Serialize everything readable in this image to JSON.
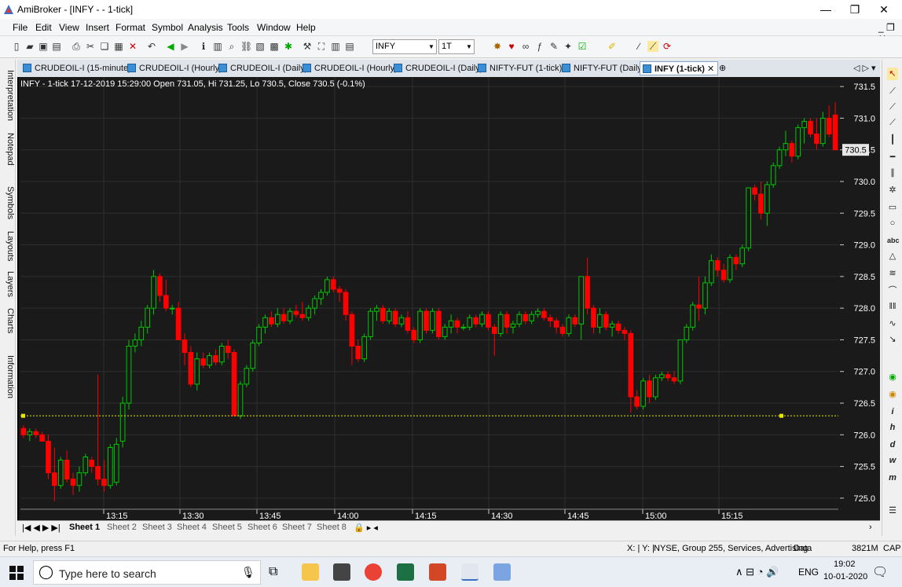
{
  "window": {
    "title": "AmiBroker - [INFY -  - 1-tick]",
    "minimize": "—",
    "maximize": "❐",
    "close": "✕"
  },
  "menu": [
    "File",
    "Edit",
    "View",
    "Insert",
    "Format",
    "Symbol",
    "Analysis",
    "Tools",
    "Window",
    "Help"
  ],
  "toolbar": {
    "symbol_value": "INFY",
    "interval_value": "1T"
  },
  "sidebar_tabs": [
    "Interpretation",
    "Notepad",
    "Symbols",
    "Layouts",
    "Layers",
    "Charts",
    "Information"
  ],
  "tabs": [
    {
      "label": "CRUDEOIL-I (15-minute)"
    },
    {
      "label": "CRUDEOIL-I (Hourly)"
    },
    {
      "label": "CRUDEOIL-I (Daily)"
    },
    {
      "label": "CRUDEOIL-I (Hourly)"
    },
    {
      "label": "CRUDEOIL-I (Daily)"
    },
    {
      "label": "NIFTY-FUT (1-tick)"
    },
    {
      "label": "NIFTY-FUT (Daily)"
    },
    {
      "label": "INFY (1-tick)",
      "active": true
    }
  ],
  "chart_header": "INFY - 1-tick 17-12-2019 15:29:00 Open 731.05, Hi 731.25, Lo 730.5, Close 730.5 (-0.1%)",
  "chart_data": {
    "type": "candlestick",
    "title": "INFY - 1-tick 17-12-2019 15:29:00 Open 731.05, Hi 731.25, Lo 730.5, Close 730.5 (-0.1%)",
    "xlabel": "",
    "ylabel": "",
    "y_ticks": [
      725.0,
      725.5,
      726.0,
      726.5,
      727.0,
      727.5,
      728.0,
      728.5,
      729.0,
      729.5,
      730.0,
      730.5,
      731.0,
      731.5
    ],
    "ylim": [
      724.85,
      731.65
    ],
    "x_ticks": [
      "13:15",
      "13:30",
      "13:45",
      "14:00",
      "14:15",
      "14:30",
      "14:45",
      "15:00",
      "15:15"
    ],
    "last_price": "730.5",
    "reference_line": 726.3,
    "up_color": "#00c800",
    "down_color": "#ff0000",
    "grid": true,
    "candles": [
      [
        726.1,
        726.15,
        725.95,
        726.0
      ],
      [
        726.0,
        726.1,
        725.9,
        726.05
      ],
      [
        726.05,
        726.1,
        725.95,
        726.0
      ],
      [
        726.0,
        726.05,
        725.9,
        725.9
      ],
      [
        725.9,
        726.0,
        725.3,
        725.4
      ],
      [
        725.4,
        725.8,
        724.95,
        725.2
      ],
      [
        725.2,
        725.65,
        725.15,
        725.6
      ],
      [
        725.6,
        725.75,
        725.25,
        725.3
      ],
      [
        725.3,
        725.4,
        725.05,
        725.2
      ],
      [
        725.2,
        725.5,
        725.1,
        725.4
      ],
      [
        725.4,
        725.7,
        725.35,
        725.65
      ],
      [
        725.6,
        725.65,
        725.4,
        725.5
      ],
      [
        725.5,
        726.95,
        725.2,
        725.3
      ],
      [
        725.3,
        725.6,
        725.1,
        725.2
      ],
      [
        725.2,
        725.85,
        725.15,
        725.8
      ],
      [
        725.25,
        725.95,
        725.2,
        725.85
      ],
      [
        725.9,
        726.6,
        725.8,
        726.5
      ],
      [
        726.5,
        727.5,
        726.4,
        727.4
      ],
      [
        727.4,
        727.6,
        727.3,
        727.5
      ],
      [
        727.5,
        727.8,
        727.4,
        727.7
      ],
      [
        727.7,
        728.05,
        727.6,
        728.0
      ],
      [
        728.0,
        728.6,
        727.9,
        728.5
      ],
      [
        728.5,
        728.55,
        728.1,
        728.2
      ],
      [
        728.2,
        728.45,
        727.95,
        728.0
      ],
      [
        728.0,
        728.05,
        727.9,
        728.0
      ],
      [
        728.0,
        728.1,
        727.5,
        727.5
      ],
      [
        727.5,
        727.6,
        727.1,
        727.3
      ],
      [
        727.3,
        727.4,
        726.75,
        726.8
      ],
      [
        726.8,
        727.3,
        726.7,
        727.2
      ],
      [
        727.2,
        727.3,
        727.05,
        727.1
      ],
      [
        727.1,
        727.3,
        727.05,
        727.25
      ],
      [
        727.25,
        727.35,
        727.1,
        727.15
      ],
      [
        727.15,
        727.45,
        727.1,
        727.4
      ],
      [
        727.4,
        727.5,
        727.2,
        727.3
      ],
      [
        727.3,
        727.35,
        726.3,
        726.3
      ],
      [
        726.3,
        726.85,
        726.25,
        726.8
      ],
      [
        726.8,
        727.1,
        726.75,
        727.05
      ],
      [
        727.05,
        727.5,
        727.0,
        727.45
      ],
      [
        727.45,
        727.75,
        727.4,
        727.7
      ],
      [
        727.7,
        727.9,
        727.6,
        727.85
      ],
      [
        727.85,
        727.95,
        727.7,
        727.75
      ],
      [
        727.75,
        728.0,
        727.7,
        727.9
      ],
      [
        727.9,
        728.0,
        727.75,
        727.8
      ],
      [
        727.8,
        728.0,
        727.75,
        727.95
      ],
      [
        727.95,
        728.05,
        727.85,
        727.9
      ],
      [
        727.9,
        728.1,
        727.8,
        727.85
      ],
      [
        727.85,
        728.05,
        727.8,
        728.0
      ],
      [
        728.0,
        728.2,
        727.9,
        728.15
      ],
      [
        728.15,
        728.3,
        728.05,
        728.25
      ],
      [
        728.25,
        728.5,
        728.2,
        728.45
      ],
      [
        728.45,
        728.5,
        728.25,
        728.3
      ],
      [
        728.3,
        728.35,
        728.1,
        728.25
      ],
      [
        728.25,
        728.3,
        727.8,
        727.9
      ],
      [
        727.9,
        727.95,
        727.1,
        727.4
      ],
      [
        727.4,
        727.5,
        727.15,
        727.2
      ],
      [
        727.2,
        727.6,
        727.15,
        727.55
      ],
      [
        727.55,
        728.0,
        727.5,
        727.95
      ],
      [
        727.95,
        728.05,
        727.8,
        728.0
      ],
      [
        728.0,
        728.05,
        727.75,
        727.8
      ],
      [
        727.8,
        728.0,
        727.75,
        727.95
      ],
      [
        727.95,
        728.0,
        727.7,
        727.75
      ],
      [
        727.75,
        727.9,
        727.7,
        727.85
      ],
      [
        727.85,
        727.95,
        727.6,
        727.65
      ],
      [
        727.65,
        727.7,
        727.45,
        727.5
      ],
      [
        727.5,
        728.0,
        727.45,
        727.95
      ],
      [
        727.95,
        728.0,
        727.6,
        727.65
      ],
      [
        727.65,
        728.0,
        727.6,
        727.95
      ],
      [
        727.95,
        728.0,
        727.5,
        727.55
      ],
      [
        727.55,
        727.75,
        727.5,
        727.7
      ],
      [
        727.7,
        727.9,
        727.6,
        727.8
      ],
      [
        727.8,
        727.85,
        727.6,
        727.7
      ],
      [
        727.7,
        727.75,
        727.65,
        727.7
      ],
      [
        727.7,
        727.9,
        727.65,
        727.85
      ],
      [
        727.85,
        727.9,
        727.7,
        727.75
      ],
      [
        727.75,
        727.95,
        727.7,
        727.9
      ],
      [
        727.9,
        727.95,
        727.65,
        727.7
      ],
      [
        727.7,
        727.75,
        727.25,
        727.6
      ],
      [
        727.6,
        727.95,
        727.55,
        727.9
      ],
      [
        727.9,
        727.95,
        727.6,
        727.7
      ],
      [
        727.7,
        727.8,
        727.6,
        727.75
      ],
      [
        727.75,
        727.95,
        727.7,
        727.9
      ],
      [
        727.9,
        727.95,
        727.75,
        727.8
      ],
      [
        727.8,
        727.95,
        727.75,
        727.9
      ],
      [
        727.9,
        728.0,
        727.85,
        727.95
      ],
      [
        727.95,
        728.0,
        727.8,
        727.85
      ],
      [
        727.85,
        727.9,
        727.7,
        727.8
      ],
      [
        727.8,
        727.85,
        727.6,
        727.7
      ],
      [
        727.7,
        727.75,
        727.55,
        727.6
      ],
      [
        727.6,
        727.9,
        727.55,
        727.85
      ],
      [
        727.85,
        727.9,
        727.7,
        727.75
      ],
      [
        727.75,
        728.5,
        727.5,
        728.5
      ],
      [
        728.5,
        728.8,
        727.9,
        728.0
      ],
      [
        728.0,
        728.05,
        727.6,
        727.7
      ],
      [
        727.7,
        728.0,
        727.6,
        727.9
      ],
      [
        727.9,
        727.95,
        727.65,
        727.7
      ],
      [
        727.7,
        727.8,
        727.55,
        727.75
      ],
      [
        727.75,
        727.8,
        727.6,
        727.65
      ],
      [
        727.65,
        727.7,
        727.5,
        727.6
      ],
      [
        727.6,
        727.65,
        726.35,
        726.6
      ],
      [
        726.6,
        726.7,
        726.4,
        726.45
      ],
      [
        726.45,
        726.9,
        726.4,
        726.85
      ],
      [
        726.85,
        726.95,
        726.5,
        726.6
      ],
      [
        726.6,
        726.95,
        726.55,
        726.9
      ],
      [
        726.9,
        727.0,
        726.85,
        726.95
      ],
      [
        726.95,
        727.0,
        726.85,
        726.9
      ],
      [
        726.9,
        727.0,
        726.8,
        726.85
      ],
      [
        726.85,
        727.5,
        726.8,
        727.5
      ],
      [
        727.5,
        727.75,
        727.45,
        727.7
      ],
      [
        727.7,
        728.1,
        727.65,
        728.05
      ],
      [
        728.05,
        728.5,
        727.8,
        728.0
      ],
      [
        728.0,
        728.5,
        727.9,
        728.4
      ],
      [
        728.4,
        728.85,
        728.35,
        728.75
      ],
      [
        728.75,
        728.8,
        728.5,
        728.6
      ],
      [
        728.6,
        728.7,
        728.4,
        728.45
      ],
      [
        728.45,
        728.85,
        728.4,
        728.8
      ],
      [
        728.8,
        728.85,
        728.6,
        728.7
      ],
      [
        728.7,
        729.0,
        728.65,
        728.95
      ],
      [
        728.95,
        729.9,
        728.9,
        729.9
      ],
      [
        729.9,
        729.95,
        729.7,
        729.8
      ],
      [
        729.8,
        730.0,
        729.4,
        729.5
      ],
      [
        729.5,
        730.0,
        729.3,
        729.95
      ],
      [
        729.95,
        730.3,
        729.9,
        730.25
      ],
      [
        730.25,
        730.55,
        730.2,
        730.5
      ],
      [
        730.5,
        730.8,
        730.4,
        730.6
      ],
      [
        730.6,
        730.65,
        730.3,
        730.4
      ],
      [
        730.4,
        730.9,
        730.35,
        730.85
      ],
      [
        730.85,
        731.0,
        730.6,
        730.95
      ],
      [
        730.95,
        731.0,
        730.7,
        730.75
      ],
      [
        730.75,
        731.0,
        730.5,
        730.6
      ],
      [
        730.6,
        731.1,
        730.55,
        731.0
      ],
      [
        731.0,
        731.2,
        730.7,
        730.75
      ],
      [
        731.05,
        731.25,
        730.5,
        730.5
      ]
    ]
  },
  "sheets": [
    "Sheet 1",
    "Sheet 2",
    "Sheet 3",
    "Sheet 4",
    "Sheet 5",
    "Sheet 6",
    "Sheet 7",
    "Sheet 8"
  ],
  "status": {
    "help": "For Help, press F1",
    "xy": "X: | Y: |",
    "info": "NYSE, Group 255, Services, Advertising",
    "data": "Data",
    "mem": "3821M",
    "cap": "CAP"
  },
  "taskbar": {
    "search_placeholder": "Type here to search",
    "lang": "ENG",
    "time": "19:02",
    "date": "10-01-2020"
  }
}
